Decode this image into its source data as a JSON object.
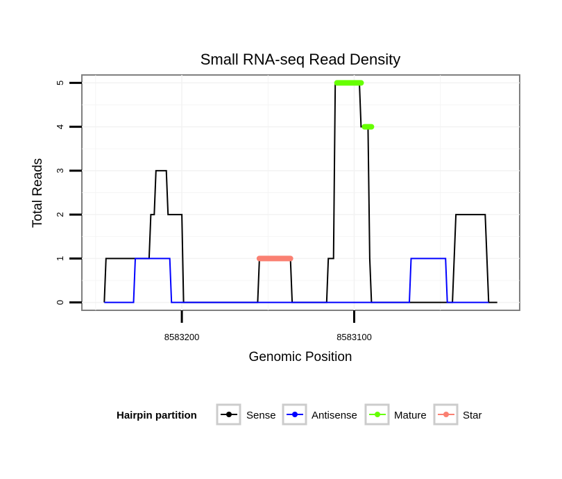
{
  "chart_data": {
    "type": "line",
    "title": "Small RNA-seq Read Density",
    "xlabel": "Genomic Position",
    "ylabel": "Total Reads",
    "x_reversed": true,
    "xlim": [
      8583258,
      8583004
    ],
    "ylim": [
      -0.18,
      5.18
    ],
    "x_ticks": [
      8583200,
      8583100
    ],
    "y_ticks": [
      0,
      1,
      2,
      3,
      4,
      5
    ],
    "grid": true,
    "legend": {
      "position": "bottom",
      "title": "Hairpin partition",
      "entries": [
        {
          "name": "Sense",
          "color": "#000000"
        },
        {
          "name": "Antisense",
          "color": "#0000ff"
        },
        {
          "name": "Mature",
          "color": "#66ff00"
        },
        {
          "name": "Star",
          "color": "#fa8072"
        }
      ]
    },
    "series": [
      {
        "name": "Sense",
        "color": "#000000",
        "points": [
          [
            8583245,
            0
          ],
          [
            8583244,
            1
          ],
          [
            8583219,
            1
          ],
          [
            8583218,
            2
          ],
          [
            8583216,
            2
          ],
          [
            8583215,
            3
          ],
          [
            8583209,
            3
          ],
          [
            8583208,
            2
          ],
          [
            8583200,
            2
          ],
          [
            8583199,
            0
          ],
          [
            8583156,
            0
          ],
          [
            8583155,
            1
          ],
          [
            8583137,
            1
          ],
          [
            8583136,
            0
          ],
          [
            8583116,
            0
          ],
          [
            8583115,
            1
          ],
          [
            8583112,
            1
          ],
          [
            8583111,
            5
          ],
          [
            8583097,
            5
          ],
          [
            8583096,
            4
          ],
          [
            8583092,
            4
          ],
          [
            8583091,
            1
          ],
          [
            8583090,
            0
          ],
          [
            8583043,
            0
          ],
          [
            8583042,
            1
          ],
          [
            8583041,
            2
          ],
          [
            8583024,
            2
          ],
          [
            8583023,
            1
          ],
          [
            8583022,
            0
          ],
          [
            8583017,
            0
          ]
        ]
      },
      {
        "name": "Antisense",
        "color": "#0000ff",
        "points": [
          [
            8583245,
            0
          ],
          [
            8583228,
            0
          ],
          [
            8583227,
            1
          ],
          [
            8583207,
            1
          ],
          [
            8583206,
            0
          ],
          [
            8583068,
            0
          ],
          [
            8583067,
            1
          ],
          [
            8583047,
            1
          ],
          [
            8583046,
            0
          ],
          [
            8583022,
            0
          ]
        ]
      },
      {
        "name": "Mature",
        "color": "#66ff00",
        "segments": [
          {
            "x_start": 8583110,
            "x_end": 8583096,
            "y": 5
          },
          {
            "x_start": 8583094,
            "x_end": 8583090,
            "y": 4
          }
        ]
      },
      {
        "name": "Star",
        "color": "#fa8072",
        "segments": [
          {
            "x_start": 8583155,
            "x_end": 8583137,
            "y": 1
          }
        ]
      }
    ]
  }
}
